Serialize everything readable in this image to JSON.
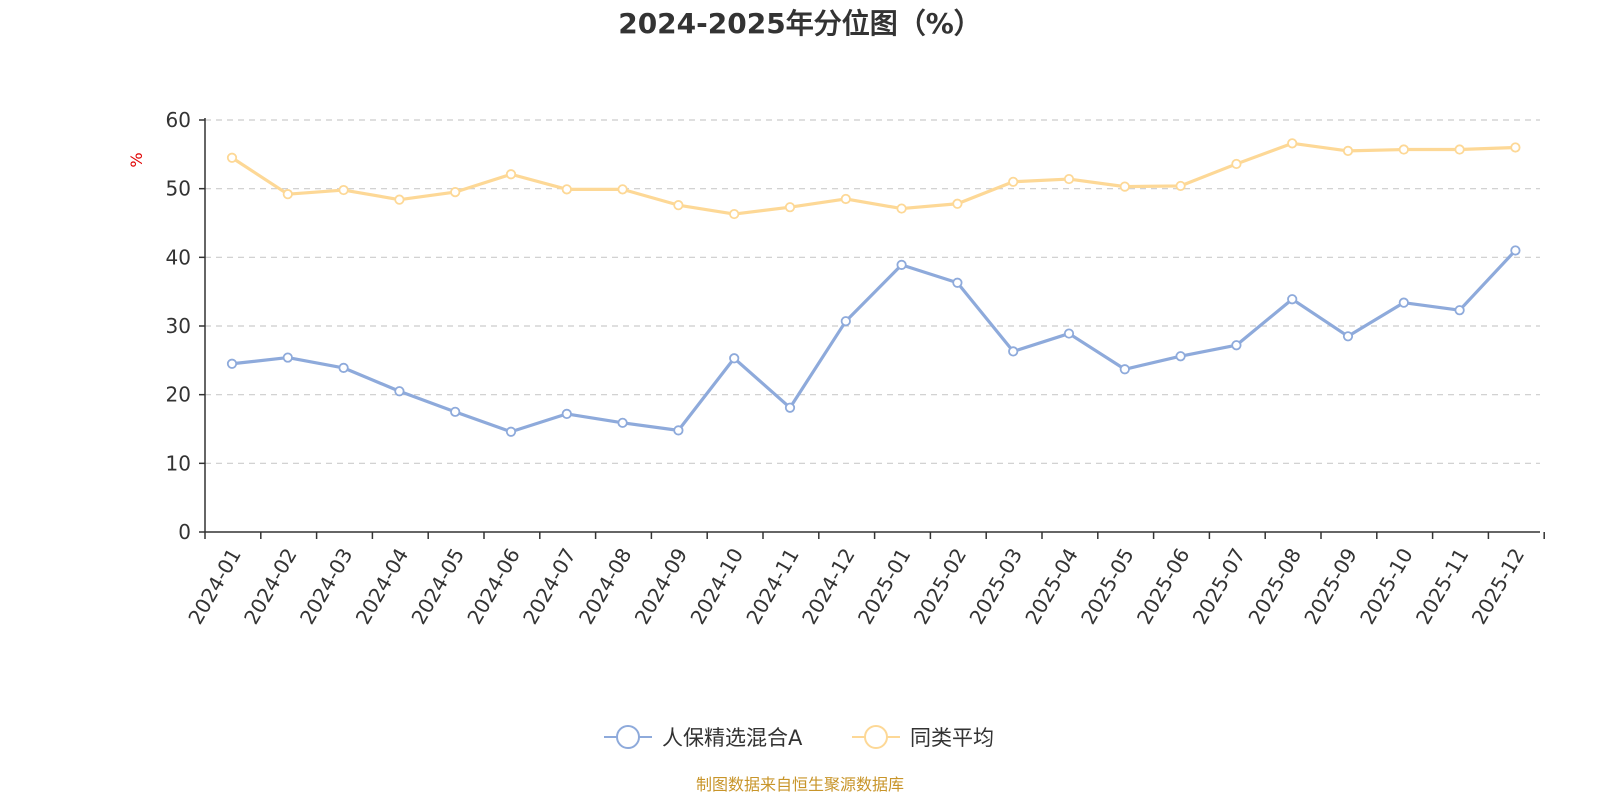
{
  "chart_data": {
    "type": "line",
    "title": "2024-2025年分位图（%）",
    "ylabel": "%",
    "ylim": [
      0,
      60
    ],
    "yticks": [
      0,
      10,
      20,
      30,
      40,
      50,
      60
    ],
    "grid": true,
    "legend_position": "bottom",
    "categories": [
      "2024-01",
      "2024-02",
      "2024-03",
      "2024-04",
      "2024-05",
      "2024-06",
      "2024-07",
      "2024-08",
      "2024-09",
      "2024-10",
      "2024-11",
      "2024-12",
      "2025-01",
      "2025-02",
      "2025-03",
      "2025-04",
      "2025-05",
      "2025-06",
      "2025-07",
      "2025-08",
      "2025-09",
      "2025-10",
      "2025-11",
      "2025-12"
    ],
    "series": [
      {
        "name": "人保精选混合A",
        "color": "#8eaadb",
        "values": [
          24.5,
          25.4,
          23.9,
          20.5,
          17.5,
          14.6,
          17.2,
          15.9,
          14.8,
          25.3,
          18.1,
          30.7,
          38.9,
          36.3,
          26.3,
          28.9,
          23.7,
          25.6,
          27.2,
          33.9,
          28.5,
          33.4,
          32.3,
          41.0
        ]
      },
      {
        "name": "同类平均",
        "color": "#fdd896",
        "values": [
          54.5,
          49.2,
          49.8,
          48.4,
          49.5,
          52.1,
          49.9,
          49.9,
          47.6,
          46.3,
          47.3,
          48.5,
          47.1,
          47.8,
          51.0,
          51.4,
          50.3,
          50.4,
          53.6,
          56.6,
          55.5,
          55.7,
          55.7,
          56.0
        ]
      }
    ],
    "source": "制图数据来自恒生聚源数据库"
  },
  "colors": {
    "axis": "#333333",
    "grid": "#cccccc",
    "unit": "#e00000",
    "source": "#c8952a"
  }
}
